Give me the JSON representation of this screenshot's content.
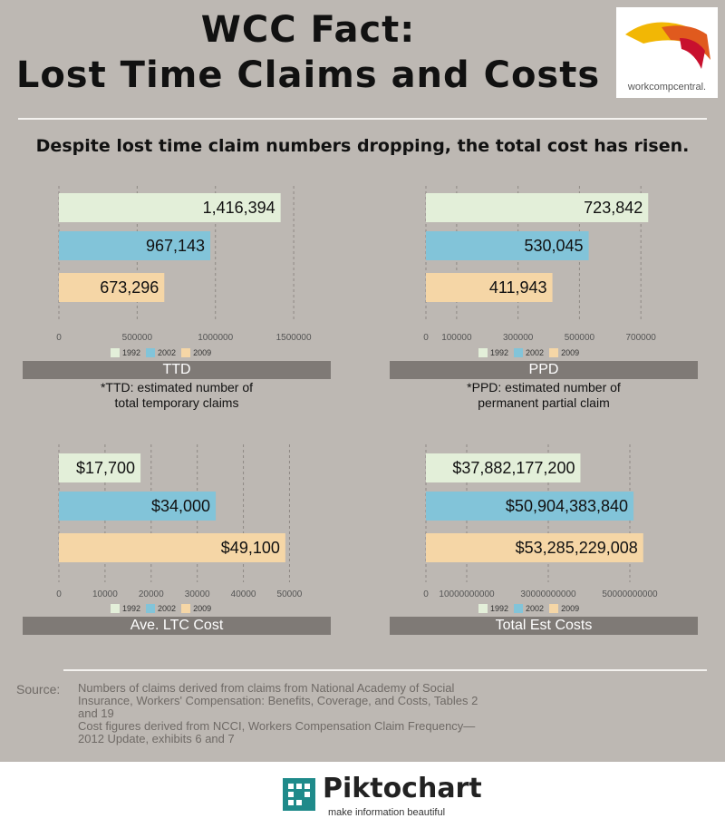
{
  "header": {
    "title_line1": "WCC Fact:",
    "title_line2": "Lost Time Claims and Costs",
    "subtitle": "Despite lost time claim numbers dropping, the total cost has risen."
  },
  "logo": {
    "text": "workcompcentral.",
    "icon": "workcompcentral-swoosh-logo"
  },
  "colors": {
    "1992": "#e3efd9",
    "2002": "#82c4d9",
    "2009": "#f5d6a6",
    "caption": "#7f7a76",
    "background": "#bdb8b3"
  },
  "legend": [
    {
      "label": "1992",
      "color": "#e3efd9"
    },
    {
      "label": "2002",
      "color": "#82c4d9"
    },
    {
      "label": "2009",
      "color": "#f5d6a6"
    }
  ],
  "chart_data": [
    {
      "type": "bar",
      "title": "TTD",
      "categories": [
        "1992",
        "2002",
        "2009"
      ],
      "values": [
        1416394,
        967143,
        673296
      ],
      "value_labels": [
        "1,416,394",
        "967,143",
        "673,296"
      ],
      "ticks": [
        "0",
        "500000",
        "1000000",
        "1500000"
      ],
      "xlim": [
        0,
        1650000
      ],
      "grid": true,
      "note_line1": "*TTD: estimated number of",
      "note_line2": "total temporary claims"
    },
    {
      "type": "bar",
      "title": "PPD",
      "categories": [
        "1992",
        "2002",
        "2009"
      ],
      "values": [
        723842,
        530045,
        411943
      ],
      "value_labels": [
        "723,842",
        "530,045",
        "411,943"
      ],
      "ticks": [
        "0",
        "100000",
        "300000",
        "500000",
        "700000"
      ],
      "xlim": [
        0,
        850000
      ],
      "grid": true,
      "note_line1": "*PPD: estimated number of",
      "note_line2": "permanent partial claim"
    },
    {
      "type": "bar",
      "title": "Ave. LTC Cost",
      "categories": [
        "1992",
        "2002",
        "2009"
      ],
      "values": [
        17700,
        34000,
        49100
      ],
      "value_labels": [
        "$17,700",
        "$34,000",
        "$49,100"
      ],
      "ticks": [
        "0",
        "10000",
        "20000",
        "30000",
        "40000",
        "50000"
      ],
      "xlim": [
        0,
        56000
      ],
      "grid": true
    },
    {
      "type": "bar",
      "title": "Total Est Costs",
      "categories": [
        "1992",
        "2002",
        "2009"
      ],
      "values": [
        37882177200,
        50904383840,
        53285229008
      ],
      "value_labels": [
        "$37,882,177,200",
        "$50,904,383,840",
        "$53,285,229,008"
      ],
      "ticks": [
        "0",
        "10000000000",
        "30000000000",
        "50000000000"
      ],
      "xlim": [
        0,
        64000000000
      ],
      "grid": true
    }
  ],
  "source": {
    "label": "Source:",
    "lines": [
      "Numbers of claims derived from claims from National Academy of Social",
      "Insurance, Workers' Compensation: Benefits, Coverage, and Costs, Tables 2",
      "and 19",
      "Cost figures derived from NCCI, Workers Compensation Claim Frequency—",
      "2012 Update, exhibits 6 and 7"
    ]
  },
  "footer": {
    "brand": "Piktochart",
    "tagline": "make information beautiful",
    "icon": "piktochart-logo-icon"
  }
}
